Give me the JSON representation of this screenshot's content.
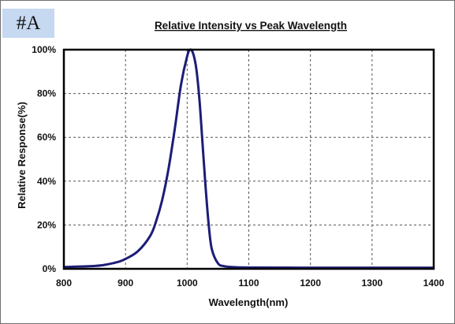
{
  "tag_label": "#A",
  "colors": {
    "curve": "#1c1c78",
    "grid": "#555555",
    "tag_bg": "#c6d9f1"
  },
  "chart_data": {
    "type": "line",
    "title": "Relative Intensity vs Peak Wavelength",
    "xlabel": "Wavelength(nm)",
    "ylabel": "Relative Response(%)",
    "xlim": [
      800,
      1400
    ],
    "ylim": [
      0,
      100
    ],
    "x_ticks": [
      800,
      900,
      1000,
      1100,
      1200,
      1300,
      1400
    ],
    "y_ticks": [
      0,
      20,
      40,
      60,
      80,
      100
    ],
    "y_tick_labels": [
      "0%",
      "20%",
      "40%",
      "60%",
      "80%",
      "100%"
    ],
    "grid": true,
    "grid_style": "dashed",
    "series": [
      {
        "x": [
          800,
          850,
          870,
          890,
          900,
          920,
          940,
          950,
          960,
          970,
          980,
          990,
          1000,
          1005,
          1010,
          1015,
          1020,
          1025,
          1030,
          1035,
          1040,
          1050,
          1060,
          1080,
          1100,
          1200,
          1300,
          1400
        ],
        "y": [
          0.8,
          1.3,
          2,
          3.3,
          4.5,
          8,
          15,
          22,
          32,
          46,
          64,
          84,
          97,
          100,
          98,
          91,
          77,
          57,
          37,
          20,
          9,
          2.5,
          1.2,
          0.7,
          0.6,
          0.5,
          0.5,
          0.5
        ]
      }
    ]
  }
}
